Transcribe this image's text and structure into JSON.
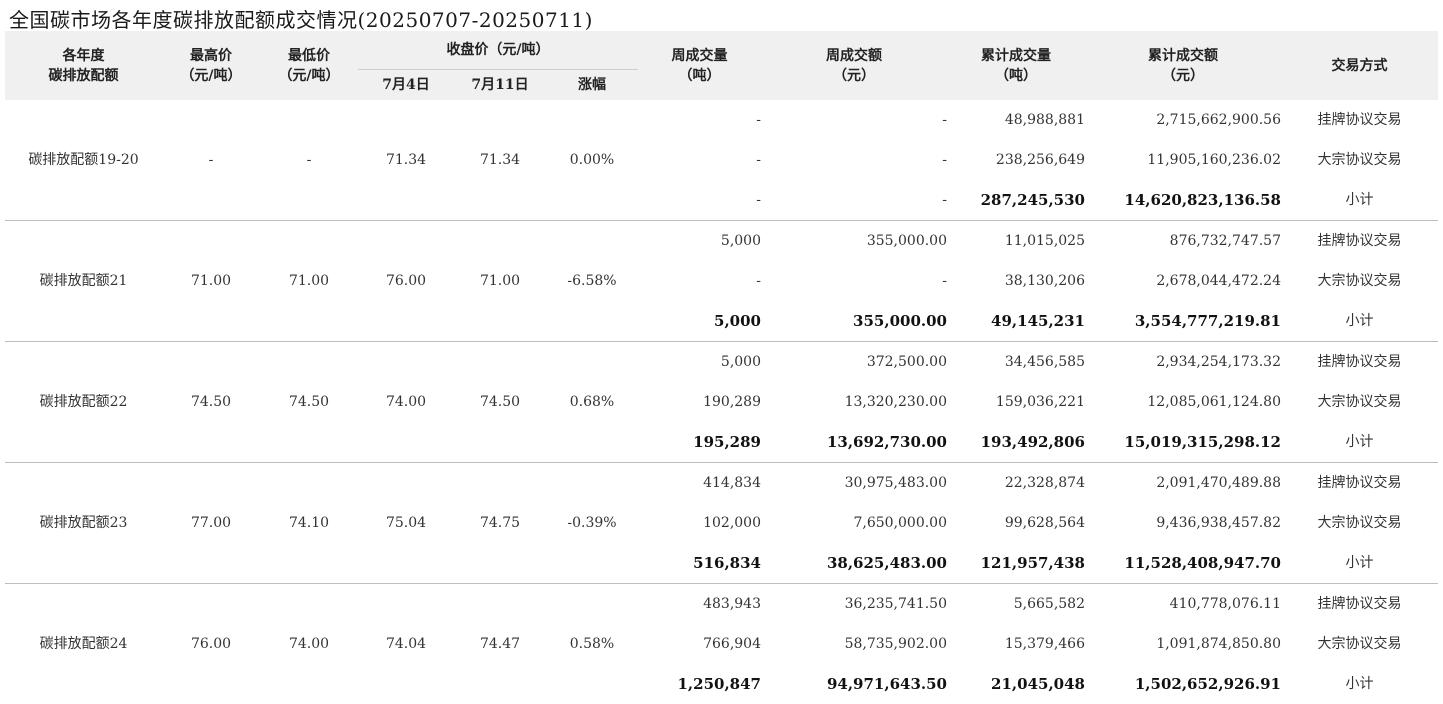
{
  "title": "全国碳市场各年度碳排放配额成交情况(20250707-20250711)",
  "headers": {
    "year": [
      "各年度",
      "碳排放配额"
    ],
    "high": [
      "最高价",
      "（元/吨）"
    ],
    "low": [
      "最低价",
      "（元/吨）"
    ],
    "close": "收盘价（元/吨）",
    "close_prev": "7月4日",
    "close_curr": "7月11日",
    "change": "涨幅",
    "week_vol": [
      "周成交量",
      "（吨）"
    ],
    "week_amt": [
      "周成交额",
      "（元）"
    ],
    "cum_vol": [
      "累计成交量",
      "（吨）"
    ],
    "cum_amt": [
      "累计成交额",
      "（元）"
    ],
    "method": "交易方式"
  },
  "groups": [
    {
      "name": "碳排放配额19-20",
      "high": "-",
      "low": "-",
      "close_prev": "71.34",
      "close_curr": "71.34",
      "change": "0.00%",
      "rows": [
        {
          "week_vol": "-",
          "week_amt": "-",
          "cum_vol": "48,988,881",
          "cum_amt": "2,715,662,900.56",
          "method": "挂牌协议交易"
        },
        {
          "week_vol": "-",
          "week_amt": "-",
          "cum_vol": "238,256,649",
          "cum_amt": "11,905,160,236.02",
          "method": "大宗协议交易"
        },
        {
          "week_vol": "-",
          "week_amt": "-",
          "cum_vol": "287,245,530",
          "cum_amt": "14,620,823,136.58",
          "method": "小计"
        }
      ]
    },
    {
      "name": "碳排放配额21",
      "high": "71.00",
      "low": "71.00",
      "close_prev": "76.00",
      "close_curr": "71.00",
      "change": "-6.58%",
      "rows": [
        {
          "week_vol": "5,000",
          "week_amt": "355,000.00",
          "cum_vol": "11,015,025",
          "cum_amt": "876,732,747.57",
          "method": "挂牌协议交易"
        },
        {
          "week_vol": "-",
          "week_amt": "-",
          "cum_vol": "38,130,206",
          "cum_amt": "2,678,044,472.24",
          "method": "大宗协议交易"
        },
        {
          "week_vol": "5,000",
          "week_amt": "355,000.00",
          "cum_vol": "49,145,231",
          "cum_amt": "3,554,777,219.81",
          "method": "小计"
        }
      ]
    },
    {
      "name": "碳排放配额22",
      "high": "74.50",
      "low": "74.50",
      "close_prev": "74.00",
      "close_curr": "74.50",
      "change": "0.68%",
      "rows": [
        {
          "week_vol": "5,000",
          "week_amt": "372,500.00",
          "cum_vol": "34,456,585",
          "cum_amt": "2,934,254,173.32",
          "method": "挂牌协议交易"
        },
        {
          "week_vol": "190,289",
          "week_amt": "13,320,230.00",
          "cum_vol": "159,036,221",
          "cum_amt": "12,085,061,124.80",
          "method": "大宗协议交易"
        },
        {
          "week_vol": "195,289",
          "week_amt": "13,692,730.00",
          "cum_vol": "193,492,806",
          "cum_amt": "15,019,315,298.12",
          "method": "小计"
        }
      ]
    },
    {
      "name": "碳排放配额23",
      "high": "77.00",
      "low": "74.10",
      "close_prev": "75.04",
      "close_curr": "74.75",
      "change": "-0.39%",
      "rows": [
        {
          "week_vol": "414,834",
          "week_amt": "30,975,483.00",
          "cum_vol": "22,328,874",
          "cum_amt": "2,091,470,489.88",
          "method": "挂牌协议交易"
        },
        {
          "week_vol": "102,000",
          "week_amt": "7,650,000.00",
          "cum_vol": "99,628,564",
          "cum_amt": "9,436,938,457.82",
          "method": "大宗协议交易"
        },
        {
          "week_vol": "516,834",
          "week_amt": "38,625,483.00",
          "cum_vol": "121,957,438",
          "cum_amt": "11,528,408,947.70",
          "method": "小计"
        }
      ]
    },
    {
      "name": "碳排放配额24",
      "high": "76.00",
      "low": "74.00",
      "close_prev": "74.04",
      "close_curr": "74.47",
      "change": "0.58%",
      "rows": [
        {
          "week_vol": "483,943",
          "week_amt": "36,235,741.50",
          "cum_vol": "5,665,582",
          "cum_amt": "410,778,076.11",
          "method": "挂牌协议交易"
        },
        {
          "week_vol": "766,904",
          "week_amt": "58,735,902.00",
          "cum_vol": "15,379,466",
          "cum_amt": "1,091,874,850.80",
          "method": "大宗协议交易"
        },
        {
          "week_vol": "1,250,847",
          "week_amt": "94,971,643.50",
          "cum_vol": "21,045,048",
          "cum_amt": "1,502,652,926.91",
          "method": "小计"
        }
      ]
    }
  ]
}
